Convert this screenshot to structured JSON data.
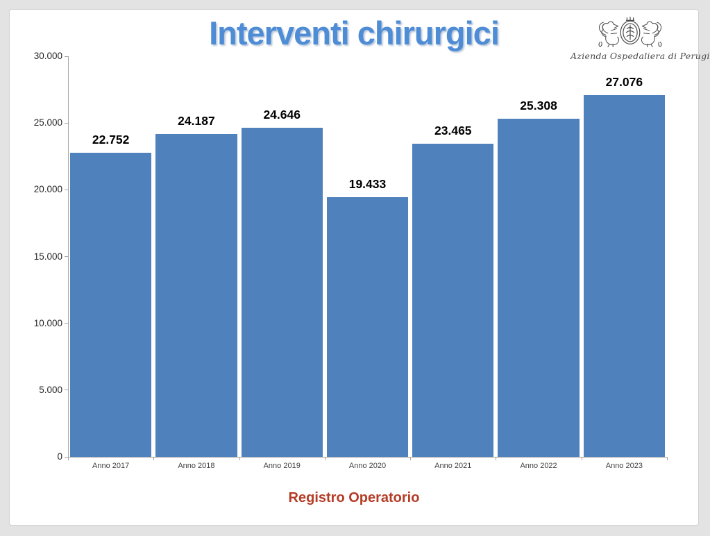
{
  "slide": {
    "title": "Interventi chirurgici",
    "caption": "Registro Operatorio",
    "logo": {
      "icon": "hospital-crest-icon",
      "text": "Azienda Ospedaliera di Perugia"
    }
  },
  "chart_data": {
    "type": "bar",
    "title": "Interventi chirurgici",
    "categories": [
      "Anno 2017",
      "Anno 2018",
      "Anno 2019",
      "Anno 2020",
      "Anno 2021",
      "Anno 2022",
      "Anno 2023"
    ],
    "values": [
      22752,
      24187,
      24646,
      19433,
      23465,
      25308,
      27076
    ],
    "value_labels": [
      "22.752",
      "24.187",
      "24.646",
      "19.433",
      "23.465",
      "25.308",
      "27.076"
    ],
    "xlabel": "",
    "ylabel": "",
    "ylim": [
      0,
      30000
    ],
    "yticks": [
      {
        "value": 0,
        "label": "0"
      },
      {
        "value": 5000,
        "label": "5.000"
      },
      {
        "value": 10000,
        "label": "10.000"
      },
      {
        "value": 15000,
        "label": "15.000"
      },
      {
        "value": 20000,
        "label": "20.000"
      },
      {
        "value": 25000,
        "label": "25.000"
      },
      {
        "value": 30000,
        "label": "30.000"
      }
    ],
    "grid": false,
    "legend": false,
    "bar_color": "#4f81bc",
    "axis_color": "#a6a6a6"
  },
  "colors": {
    "title_blue": "#4e8dd6",
    "caption_red": "#b53c26",
    "bar_blue": "#4f81bc",
    "page_background": "#e3e3e3",
    "slide_background": "#ffffff"
  }
}
